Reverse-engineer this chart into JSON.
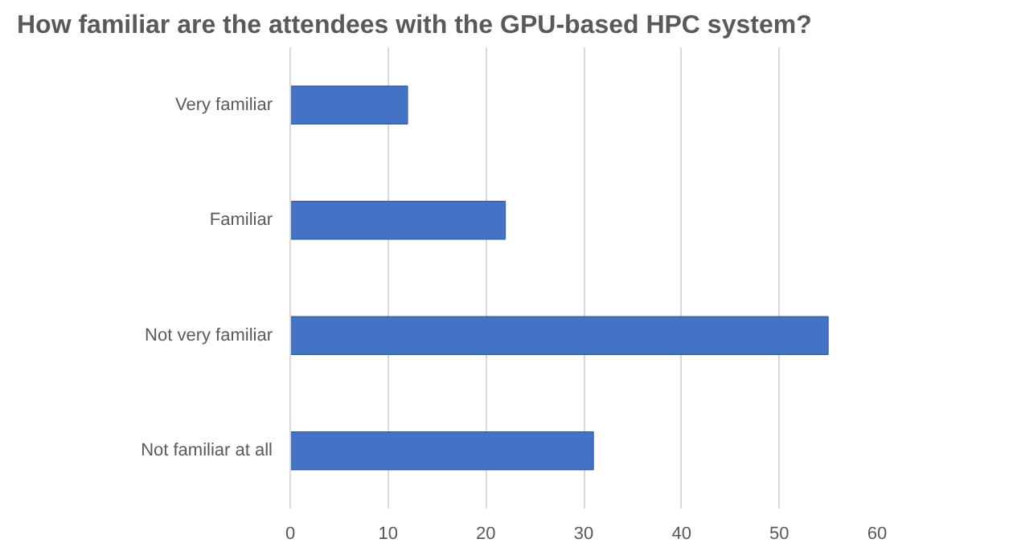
{
  "chart_data": {
    "type": "bar",
    "orientation": "horizontal",
    "title": "How familiar are the attendees with the GPU-based HPC system?",
    "categories": [
      "Very familiar",
      "Familiar",
      "Not very familiar",
      "Not familiar at all"
    ],
    "values": [
      12,
      22,
      55,
      31
    ],
    "color": "#4472c4",
    "xlim": [
      0,
      60
    ],
    "xticks": [
      0,
      10,
      20,
      30,
      40,
      50,
      60
    ],
    "grid": "x"
  }
}
